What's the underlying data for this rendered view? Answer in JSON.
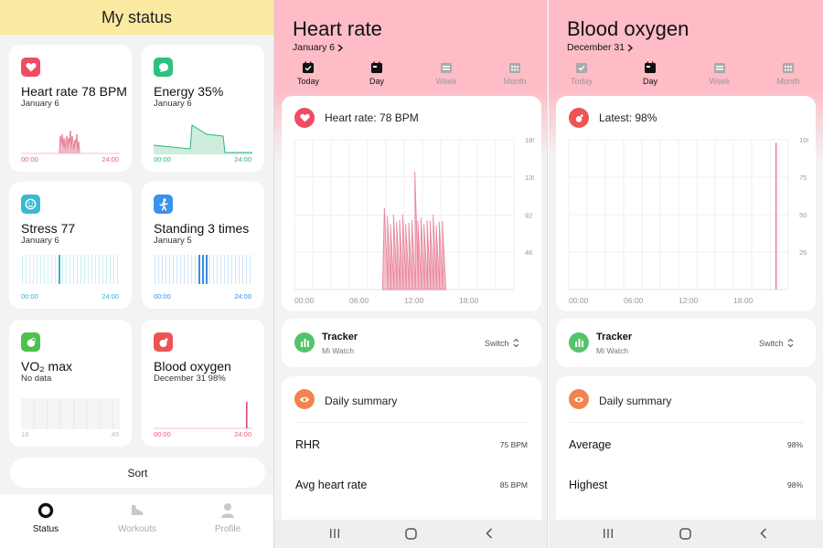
{
  "status": {
    "title": "My status",
    "cards": {
      "heart": {
        "title": "Heart rate 78 BPM",
        "date": "January 6",
        "t0": "00:00",
        "t24": "24:00",
        "color": "#e85d75"
      },
      "energy": {
        "title": "Energy 35%",
        "date": "January 6",
        "t0": "00:00",
        "t24": "24:00",
        "color": "#2db37b"
      },
      "stress": {
        "title": "Stress 77",
        "date": "January 6",
        "t0": "00:00",
        "t24": "24:00",
        "color": "#35b5c4"
      },
      "standing": {
        "title": "Standing 3 times",
        "date": "January 5",
        "t0": "00:00",
        "t24": "24:00",
        "color": "#3a8ee6"
      },
      "vo2": {
        "title": "VO₂ max",
        "date": "No data",
        "t0": "18",
        "t24": "49",
        "color": "#4cbb4c"
      },
      "oxygen": {
        "title": "Blood oxygen",
        "date": "December 31 98%",
        "t0": "00:00",
        "t24": "24:00",
        "color": "#e85d5d"
      }
    },
    "sort_label": "Sort",
    "nav": {
      "status": "Status",
      "workouts": "Workouts",
      "profile": "Profile"
    }
  },
  "tabs": {
    "today": "Today",
    "day": "Day",
    "week": "Week",
    "month": "Month"
  },
  "heart_screen": {
    "title": "Heart rate",
    "date": "January 6",
    "metric": "Heart rate: 78 BPM",
    "tracker": {
      "name": "Tracker",
      "device": "Mi Watch",
      "switch": "Switch"
    },
    "summary_title": "Daily summary",
    "rows": [
      {
        "label": "RHR",
        "value": "75 BPM"
      },
      {
        "label": "Avg heart rate",
        "value": "85 BPM"
      }
    ]
  },
  "oxygen_screen": {
    "title": "Blood oxygen",
    "date": "December 31",
    "metric": "Latest: 98%",
    "tracker": {
      "name": "Tracker",
      "device": "Mi Watch",
      "switch": "Switch"
    },
    "summary_title": "Daily summary",
    "rows": [
      {
        "label": "Average",
        "value": "98%"
      },
      {
        "label": "Highest",
        "value": "98%"
      }
    ]
  },
  "chart_data": [
    {
      "type": "area",
      "title": "",
      "x": [
        "09:50",
        "10:10",
        "10:30",
        "10:50",
        "11:10",
        "11:30",
        "11:50",
        "12:10",
        "12:30",
        "12:50",
        "13:10",
        "13:30",
        "13:50",
        "14:10",
        "14:30",
        "14:50",
        "15:10",
        "15:30",
        "15:50",
        "16:10"
      ],
      "values": [
        100,
        90,
        80,
        92,
        83,
        85,
        92,
        80,
        82,
        85,
        145,
        84,
        88,
        80,
        85,
        84,
        92,
        78,
        83,
        84
      ],
      "xticks": [
        "00:00",
        "06:00",
        "12:00",
        "18:00"
      ],
      "yticks": [
        "185",
        "139",
        "92",
        "46"
      ],
      "ylim": [
        0,
        185
      ],
      "xlim_hours": [
        0,
        24
      ],
      "color": "#e8869a"
    },
    {
      "type": "bar",
      "title": "",
      "x": [
        "22:40"
      ],
      "values": [
        98
      ],
      "xticks": [
        "00:00",
        "06:00",
        "12:00",
        "18:00"
      ],
      "yticks": [
        "100",
        "75",
        "50",
        "25"
      ],
      "ylim": [
        0,
        100
      ],
      "xlim_hours": [
        0,
        24
      ],
      "color": "#e8869a"
    }
  ]
}
